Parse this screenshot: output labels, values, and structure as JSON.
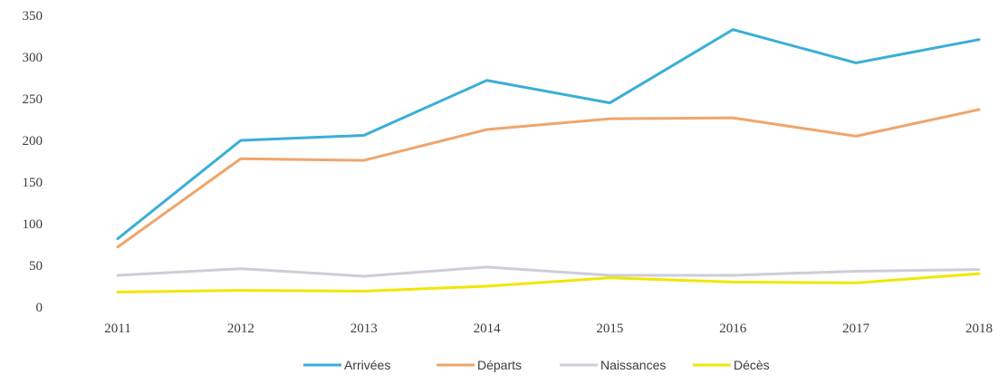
{
  "chart_data": {
    "type": "line",
    "title": "",
    "xlabel": "",
    "ylabel": "",
    "categories": [
      "2011",
      "2012",
      "2013",
      "2014",
      "2015",
      "2016",
      "2017",
      "2018"
    ],
    "ylim": [
      0,
      350
    ],
    "yticks": [
      0,
      50,
      100,
      150,
      200,
      250,
      300,
      350
    ],
    "grid": false,
    "legend_position": "bottom",
    "series": [
      {
        "name": "Arrivées",
        "color": "#3aaed8",
        "values": [
          82,
          200,
          206,
          272,
          245,
          333,
          293,
          321
        ]
      },
      {
        "name": "Départs",
        "color": "#f0a56b",
        "values": [
          72,
          178,
          176,
          213,
          226,
          227,
          205,
          237
        ]
      },
      {
        "name": "Naissances",
        "color": "#cdcdd8",
        "values": [
          38,
          46,
          37,
          48,
          38,
          38,
          43,
          45
        ]
      },
      {
        "name": "Décès",
        "color": "#f2e600",
        "values": [
          18,
          20,
          19,
          25,
          35,
          30,
          29,
          40
        ]
      }
    ]
  }
}
